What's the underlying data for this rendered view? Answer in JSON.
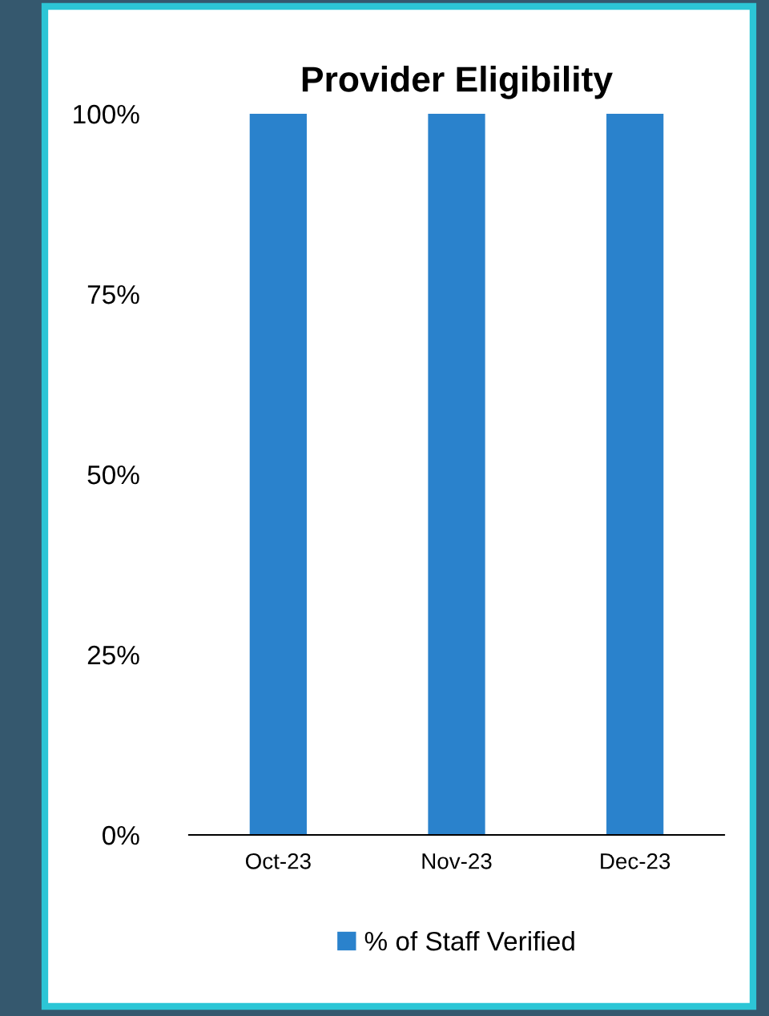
{
  "chart_data": {
    "type": "bar",
    "title": "Provider Eligibility",
    "categories": [
      "Oct-23",
      "Nov-23",
      "Dec-23"
    ],
    "series": [
      {
        "name": "% of Staff Verified",
        "color": "#2a82cc",
        "values": [
          100,
          100,
          100
        ]
      }
    ],
    "ylim": [
      0,
      100
    ],
    "yticks": [
      {
        "value": 0,
        "label": "0%"
      },
      {
        "value": 25,
        "label": "25%"
      },
      {
        "value": 50,
        "label": "50%"
      },
      {
        "value": 75,
        "label": "75%"
      },
      {
        "value": 100,
        "label": "100%"
      }
    ],
    "grid": false,
    "legend": "bottom"
  }
}
